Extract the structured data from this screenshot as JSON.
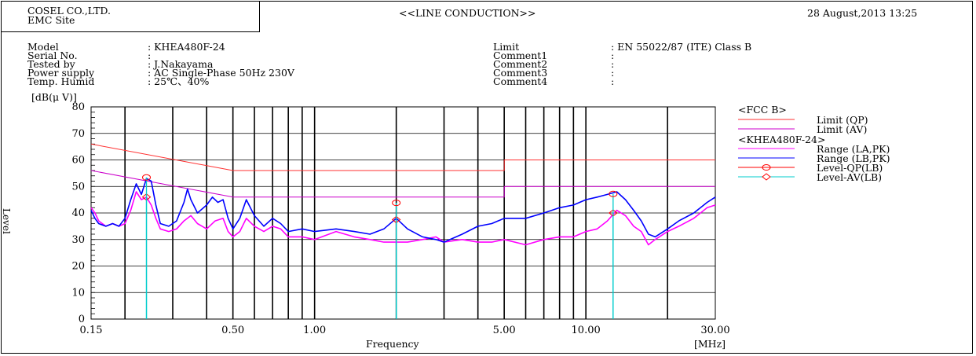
{
  "header": {
    "company": "COSEL CO.,LTD.",
    "site": "EMC Site",
    "title": "<<LINE CONDUCTION>>",
    "date": "28 August,2013 13:25"
  },
  "info_left": {
    "labels": [
      "Model",
      "Serial No.",
      "Tested by",
      "Power supply",
      "Temp. Humid"
    ],
    "values": [
      ": KHEA480F-24",
      ":",
      ": J.Nakayama",
      ": AC Single-Phase 50Hz 230V",
      ": 25℃、40%"
    ]
  },
  "info_right": {
    "labels": [
      "Limit",
      "Comment1",
      "Comment2",
      "Comment3",
      "Comment4"
    ],
    "values": [
      ": EN 55022/87 (ITE) Class B",
      ":",
      ":",
      ":",
      ":"
    ]
  },
  "legend": {
    "group1_title": "<FCC B>",
    "group2_title": "<KHEA480F-24>",
    "entries": [
      {
        "label": "Limit (QP)",
        "color": "#ff3030",
        "style": "line"
      },
      {
        "label": "Limit (AV)",
        "color": "#cc00cc",
        "style": "line"
      },
      {
        "label": "Range (LA,PK)",
        "color": "#ff00ff",
        "style": "line"
      },
      {
        "label": "Range (LB,PK)",
        "color": "#0000ff",
        "style": "line"
      },
      {
        "label": "Level-QP(LB)",
        "color": "#ff0000",
        "style": "circle"
      },
      {
        "label": "Level-AV(LB)",
        "color": "#00cccc",
        "style": "diamond"
      }
    ]
  },
  "chart_data": {
    "type": "line",
    "xscale": "log",
    "xlim": [
      0.15,
      30
    ],
    "ylim": [
      0,
      80
    ],
    "xlabel": "Frequency",
    "xunit": "[MHz]",
    "ylabel": "Level",
    "yunit": "[dB(μ V)]",
    "yticks": [
      0,
      10,
      20,
      30,
      40,
      50,
      60,
      70,
      80
    ],
    "xtick_labels": [
      {
        "x": 0.15,
        "label": "0.15"
      },
      {
        "x": 0.5,
        "label": "0.50"
      },
      {
        "x": 1,
        "label": "1.00"
      },
      {
        "x": 5,
        "label": "5.00"
      },
      {
        "x": 10,
        "label": "10.00"
      },
      {
        "x": 30,
        "label": "30.00"
      }
    ],
    "vgrid": [
      0.2,
      0.3,
      0.4,
      0.5,
      0.6,
      0.7,
      0.8,
      0.9,
      1,
      2,
      3,
      4,
      5,
      6,
      7,
      8,
      9,
      10,
      20,
      30
    ],
    "series": [
      {
        "name": "Limit (QP)",
        "color": "#ff3030",
        "points": [
          [
            0.15,
            66
          ],
          [
            0.5,
            56
          ],
          [
            5,
            56
          ],
          [
            5,
            60
          ],
          [
            30,
            60
          ]
        ]
      },
      {
        "name": "Limit (AV)",
        "color": "#cc00cc",
        "points": [
          [
            0.15,
            56
          ],
          [
            0.5,
            46
          ],
          [
            5,
            46
          ],
          [
            5,
            50
          ],
          [
            30,
            50
          ]
        ]
      },
      {
        "name": "Range (LA,PK)",
        "color": "#ff00ff",
        "points": [
          [
            0.15,
            42
          ],
          [
            0.155,
            40
          ],
          [
            0.16,
            37
          ],
          [
            0.17,
            35
          ],
          [
            0.18,
            36
          ],
          [
            0.19,
            35
          ],
          [
            0.2,
            36
          ],
          [
            0.21,
            41
          ],
          [
            0.22,
            48
          ],
          [
            0.23,
            45
          ],
          [
            0.24,
            46
          ],
          [
            0.25,
            43
          ],
          [
            0.26,
            38
          ],
          [
            0.27,
            34
          ],
          [
            0.29,
            33
          ],
          [
            0.31,
            34
          ],
          [
            0.33,
            37
          ],
          [
            0.35,
            39
          ],
          [
            0.37,
            36
          ],
          [
            0.4,
            34
          ],
          [
            0.43,
            37
          ],
          [
            0.46,
            38
          ],
          [
            0.48,
            33
          ],
          [
            0.5,
            31
          ],
          [
            0.53,
            33
          ],
          [
            0.56,
            38
          ],
          [
            0.6,
            35
          ],
          [
            0.65,
            33
          ],
          [
            0.7,
            35
          ],
          [
            0.75,
            34
          ],
          [
            0.8,
            31
          ],
          [
            0.9,
            31
          ],
          [
            1,
            30
          ],
          [
            1.2,
            33
          ],
          [
            1.4,
            31
          ],
          [
            1.6,
            30
          ],
          [
            1.8,
            29
          ],
          [
            2,
            29
          ],
          [
            2.2,
            29
          ],
          [
            2.5,
            30
          ],
          [
            2.8,
            31
          ],
          [
            3,
            29
          ],
          [
            3.5,
            30
          ],
          [
            4,
            29
          ],
          [
            4.5,
            29
          ],
          [
            5,
            30
          ],
          [
            6,
            28
          ],
          [
            7,
            30
          ],
          [
            8,
            31
          ],
          [
            9,
            31
          ],
          [
            10,
            33
          ],
          [
            11,
            34
          ],
          [
            12,
            37
          ],
          [
            13,
            41
          ],
          [
            14,
            39
          ],
          [
            15,
            35
          ],
          [
            16,
            33
          ],
          [
            17,
            28
          ],
          [
            18,
            30
          ],
          [
            20,
            33
          ],
          [
            22,
            35
          ],
          [
            25,
            38
          ],
          [
            28,
            42
          ],
          [
            30,
            43
          ]
        ]
      },
      {
        "name": "Range (LB,PK)",
        "color": "#0000ff",
        "points": [
          [
            0.15,
            41
          ],
          [
            0.155,
            38
          ],
          [
            0.16,
            36
          ],
          [
            0.17,
            35
          ],
          [
            0.18,
            36
          ],
          [
            0.19,
            35
          ],
          [
            0.2,
            38
          ],
          [
            0.21,
            45
          ],
          [
            0.22,
            51
          ],
          [
            0.23,
            47
          ],
          [
            0.24,
            53
          ],
          [
            0.25,
            52
          ],
          [
            0.26,
            43
          ],
          [
            0.27,
            36
          ],
          [
            0.29,
            35
          ],
          [
            0.31,
            37
          ],
          [
            0.33,
            44
          ],
          [
            0.34,
            49
          ],
          [
            0.35,
            45
          ],
          [
            0.37,
            40
          ],
          [
            0.4,
            43
          ],
          [
            0.42,
            46
          ],
          [
            0.44,
            44
          ],
          [
            0.46,
            45
          ],
          [
            0.48,
            38
          ],
          [
            0.5,
            34
          ],
          [
            0.53,
            38
          ],
          [
            0.56,
            45
          ],
          [
            0.6,
            39
          ],
          [
            0.65,
            35
          ],
          [
            0.7,
            38
          ],
          [
            0.75,
            36
          ],
          [
            0.8,
            33
          ],
          [
            0.9,
            34
          ],
          [
            1,
            33
          ],
          [
            1.2,
            34
          ],
          [
            1.4,
            33
          ],
          [
            1.6,
            32
          ],
          [
            1.8,
            34
          ],
          [
            2,
            38
          ],
          [
            2.2,
            34
          ],
          [
            2.5,
            31
          ],
          [
            2.8,
            30
          ],
          [
            3,
            29
          ],
          [
            3.5,
            32
          ],
          [
            4,
            35
          ],
          [
            4.5,
            36
          ],
          [
            5,
            38
          ],
          [
            6,
            38
          ],
          [
            7,
            40
          ],
          [
            8,
            42
          ],
          [
            9,
            43
          ],
          [
            10,
            45
          ],
          [
            11,
            46
          ],
          [
            12,
            47
          ],
          [
            13,
            48
          ],
          [
            14,
            45
          ],
          [
            15,
            41
          ],
          [
            16,
            37
          ],
          [
            17,
            32
          ],
          [
            18,
            31
          ],
          [
            20,
            34
          ],
          [
            22,
            37
          ],
          [
            25,
            40
          ],
          [
            28,
            44
          ],
          [
            30,
            46
          ]
        ]
      }
    ],
    "qp_markers": [
      {
        "x": 0.24,
        "y": 53.4
      },
      {
        "x": 2.0,
        "y": 43.8
      },
      {
        "x": 12.6,
        "y": 47.2
      }
    ],
    "av_markers": [
      {
        "x": 0.24,
        "y": 46.0
      },
      {
        "x": 2.0,
        "y": 37.5
      },
      {
        "x": 12.6,
        "y": 40.0
      }
    ]
  }
}
